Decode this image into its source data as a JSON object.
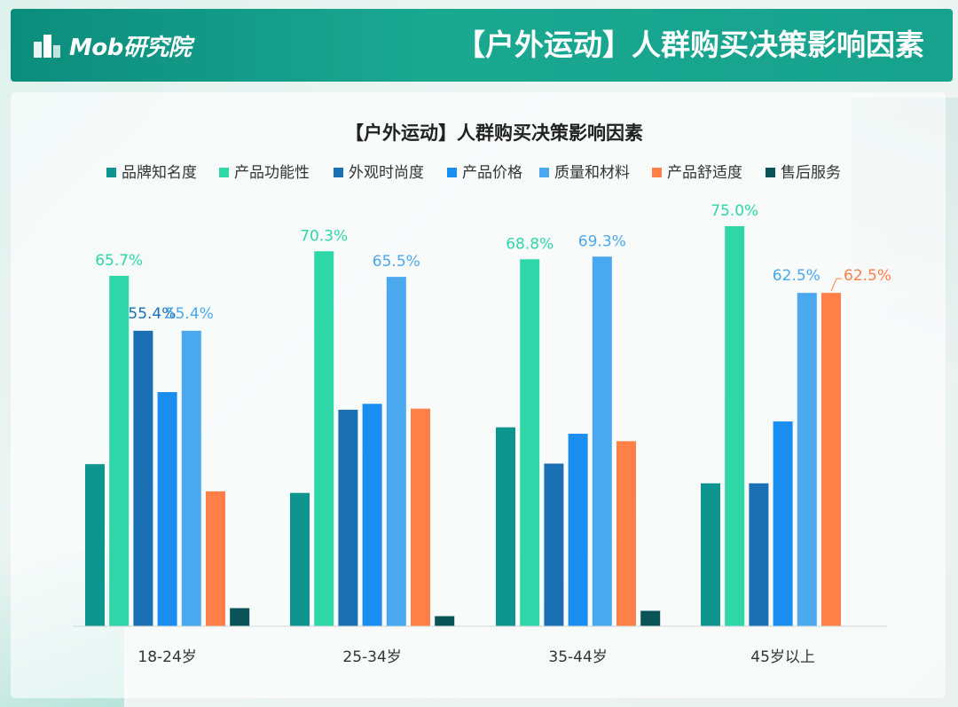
{
  "header": {
    "logo_text": "Mob研究院",
    "title": "【户外运动】人群购买决策影响因素"
  },
  "colors": {
    "header": "#11998a",
    "series": [
      "#0e9590",
      "#2ed6a8",
      "#1b6fb3",
      "#1a8ef0",
      "#4aa8ee",
      "#fe7f48",
      "#0a5457"
    ]
  },
  "chart_data": {
    "type": "bar",
    "title": "【户外运动】人群购买决策影响因素",
    "categories": [
      "18-24岁",
      "25-34岁",
      "35-44岁",
      "45岁以上"
    ],
    "legend_position": "top",
    "grid": false,
    "ylim": [
      0,
      80
    ],
    "series": [
      {
        "name": "品牌知名度",
        "values": [
          30.4,
          25.0,
          37.3,
          26.8
        ],
        "labels": [
          "",
          "",
          "",
          ""
        ]
      },
      {
        "name": "产品功能性",
        "values": [
          65.7,
          70.3,
          68.8,
          75.0
        ],
        "labels": [
          "65.7%",
          "70.3%",
          "68.8%",
          "75.0%"
        ]
      },
      {
        "name": "外观时尚度",
        "values": [
          55.4,
          40.6,
          30.5,
          26.8
        ],
        "labels": [
          "55.4%",
          "",
          "",
          ""
        ]
      },
      {
        "name": "产品价格",
        "values": [
          43.9,
          41.7,
          36.1,
          38.4
        ],
        "labels": [
          "",
          "",
          "",
          ""
        ]
      },
      {
        "name": "质量和材料",
        "values": [
          55.4,
          65.5,
          69.3,
          62.5
        ],
        "labels": [
          "55.4%",
          "65.5%",
          "69.3%",
          "62.5%"
        ]
      },
      {
        "name": "产品舒适度",
        "values": [
          25.3,
          40.8,
          34.7,
          62.5
        ],
        "labels": [
          "",
          "",
          "",
          "62.5%"
        ]
      },
      {
        "name": "售后服务",
        "values": [
          3.4,
          1.9,
          2.9,
          0
        ],
        "labels": [
          "",
          "",
          "",
          ""
        ]
      }
    ]
  }
}
